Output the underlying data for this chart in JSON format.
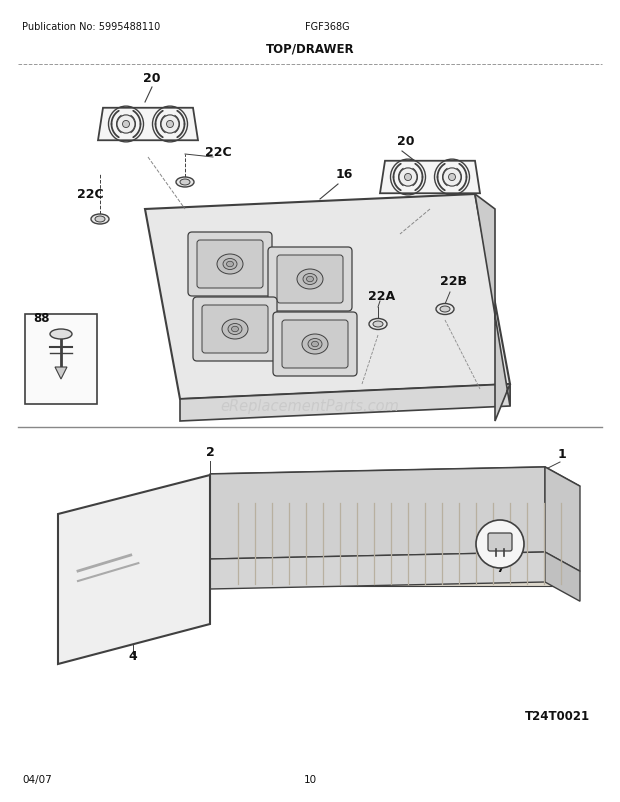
{
  "title": "TOP/DRAWER",
  "pub_no": "Publication No: 5995488110",
  "model": "FGF368G",
  "date": "04/07",
  "page": "10",
  "watermark": "eReplacementParts.com",
  "diagram_id": "T24T0021",
  "bg_color": "#ffffff",
  "line_color": "#404040",
  "text_color": "#111111",
  "watermark_color": "#c8c8c8"
}
